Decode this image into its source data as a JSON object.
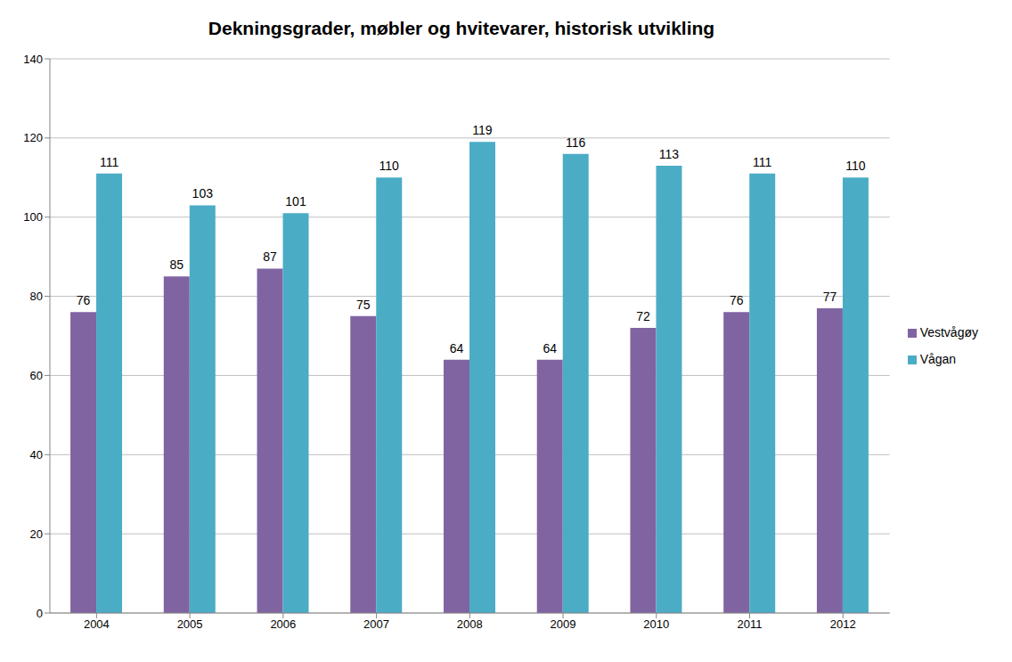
{
  "chart_data": {
    "type": "bar",
    "title": "Dekningsgrader, møbler og hvitevarer, historisk utvikling",
    "categories": [
      "2004",
      "2005",
      "2006",
      "2007",
      "2008",
      "2009",
      "2010",
      "2011",
      "2012"
    ],
    "series": [
      {
        "name": "Vestvågøy",
        "color": "#8064a2",
        "values": [
          76,
          85,
          87,
          75,
          64,
          64,
          72,
          76,
          77
        ]
      },
      {
        "name": "Vågan",
        "color": "#4bacc6",
        "values": [
          111,
          103,
          101,
          110,
          119,
          116,
          113,
          111,
          110
        ]
      }
    ],
    "ylim": [
      0,
      140
    ],
    "yticks": [
      0,
      20,
      40,
      60,
      80,
      100,
      120,
      140
    ],
    "grid": true,
    "legend": "right",
    "data_labels": true
  }
}
